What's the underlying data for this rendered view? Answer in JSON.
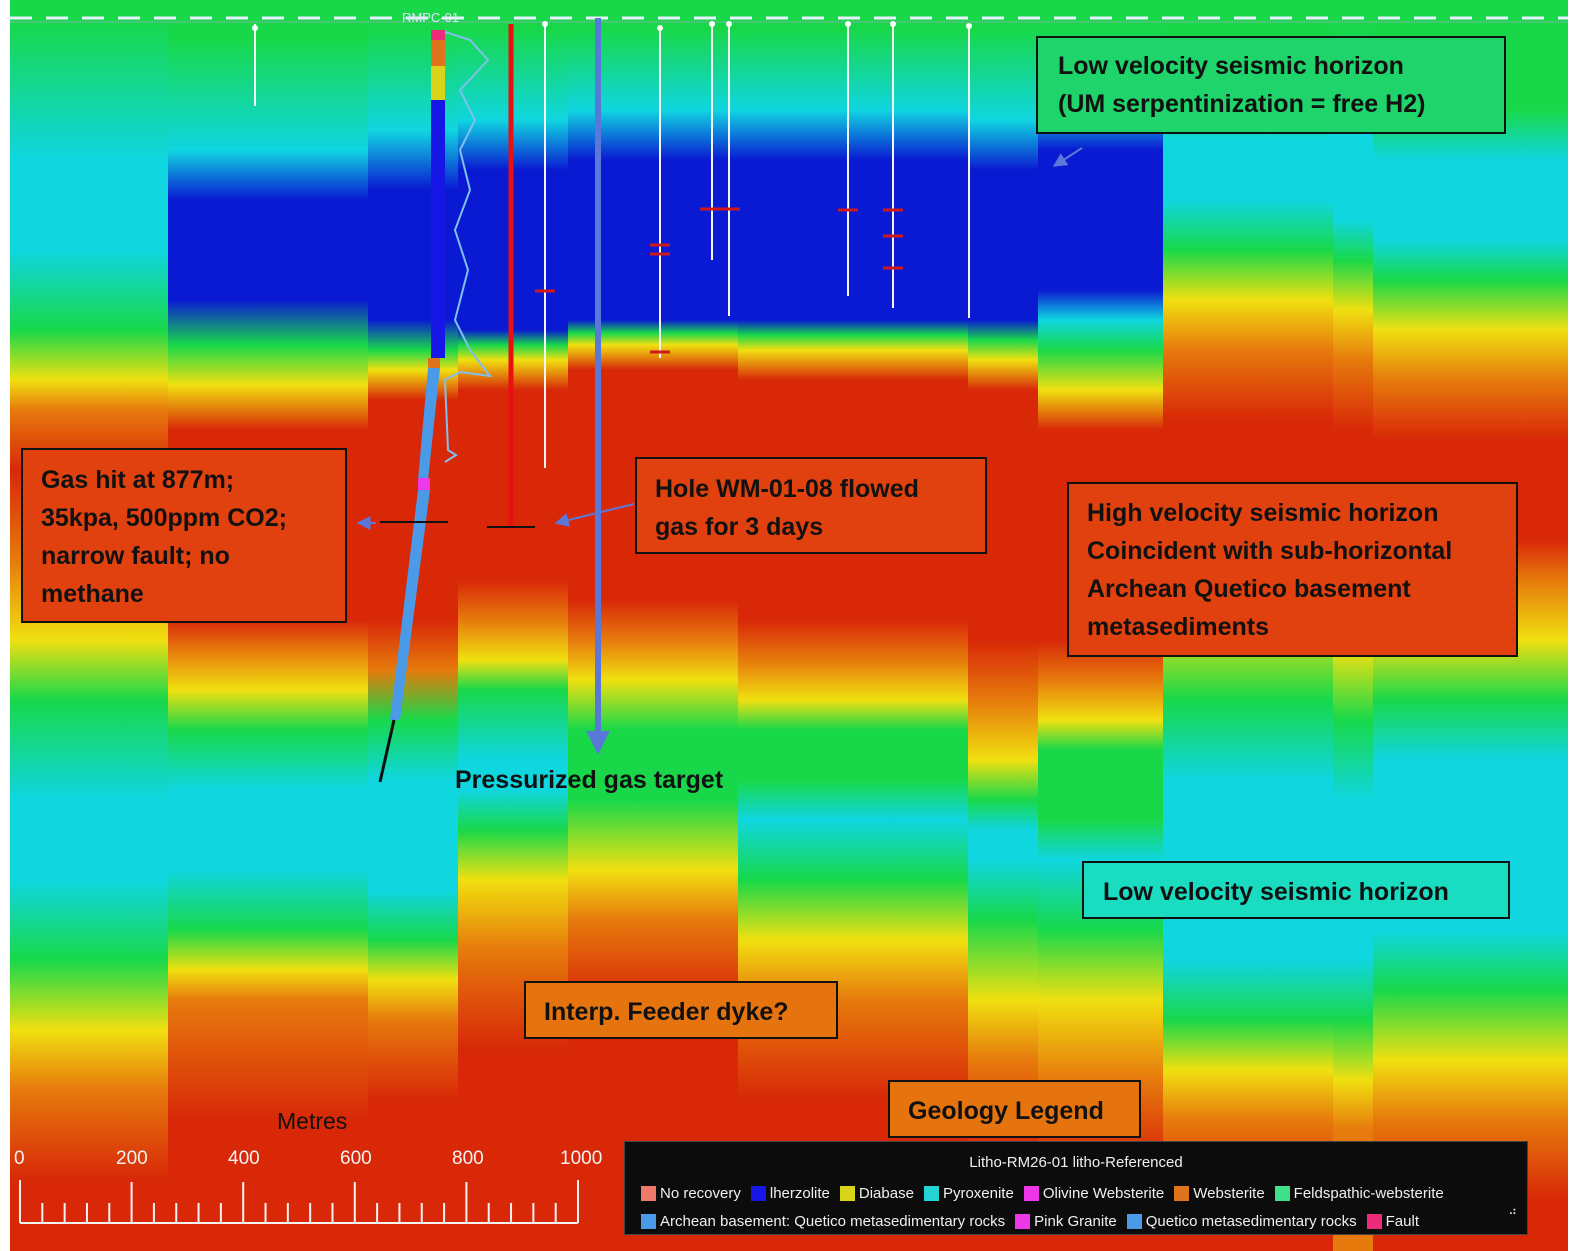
{
  "callouts": {
    "low_velocity_top": {
      "lines": [
        "Low velocity seismic horizon",
        "(UM serpentinization = free H2)"
      ]
    },
    "gas_hit": {
      "lines": [
        "Gas hit at 877m;",
        "35kpa, 500ppm CO2;",
        "narrow fault; no",
        "methane"
      ]
    },
    "hole_flowed": {
      "lines": [
        "Hole WM-01-08 flowed",
        "gas for 3 days"
      ]
    },
    "high_velocity": {
      "lines": [
        "High velocity seismic horizon",
        "Coincident with sub-horizontal",
        "Archean Quetico basement",
        "metasediments"
      ]
    },
    "low_velocity_bottom": {
      "lines": [
        "Low velocity seismic horizon"
      ]
    },
    "feeder_dyke": {
      "lines": [
        "Interp. Feeder dyke?"
      ]
    },
    "geology_legend": {
      "lines": [
        "Geology Legend"
      ]
    }
  },
  "labels": {
    "pressurized_target": "Pressurized gas target",
    "collar_label": "RMPC-01"
  },
  "scale_bar": {
    "unit": "Metres",
    "ticks": [
      "0",
      "200",
      "400",
      "600",
      "800",
      "1000"
    ]
  },
  "legend": {
    "title": "Litho-RM26-01  litho-Referenced",
    "row1": [
      {
        "label": "No recovery",
        "color": "#f07a6a"
      },
      {
        "label": "lherzolite",
        "color": "#1616e6"
      },
      {
        "label": "Diabase",
        "color": "#d8d41a"
      },
      {
        "label": "Pyroxenite",
        "color": "#22d4d4"
      },
      {
        "label": "Olivine Websterite",
        "color": "#ee38e8"
      },
      {
        "label": "Websterite",
        "color": "#e0741c"
      },
      {
        "label": "Feldspathic-websterite",
        "color": "#3ee08a"
      }
    ],
    "row2": [
      {
        "label": "Archean basement: Quetico metasedimentary rocks",
        "color": "#4a9ae8"
      },
      {
        "label": "Pink Granite",
        "color": "#ee38e8"
      },
      {
        "label": "Quetico metasedimentary rocks",
        "color": "#4a9ae8"
      },
      {
        "label": "Fault",
        "color": "#ee2a7a"
      }
    ]
  },
  "palette": {
    "blue": "#0a1ad2",
    "cyan": "#10d6e0",
    "green": "#18d84a",
    "yellow": "#f0e010",
    "orange": "#e67a0c",
    "red": "#d82808"
  }
}
